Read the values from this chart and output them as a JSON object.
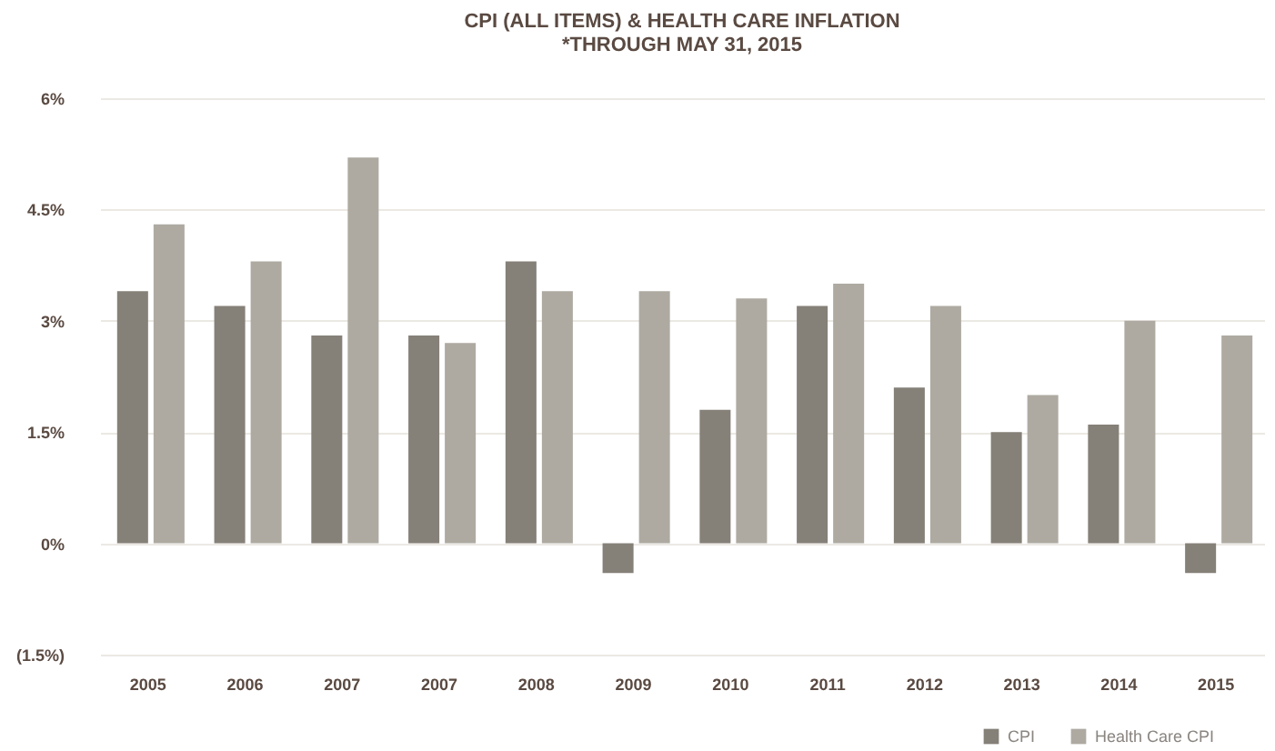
{
  "chart_data": {
    "type": "bar",
    "title": "CPI (ALL ITEMS) & HEALTH CARE INFLATION",
    "subtitle": "*THROUGH MAY 31, 2015",
    "categories": [
      "2005",
      "2006",
      "2007",
      "2007",
      "2008",
      "2009",
      "2010",
      "2011",
      "2012",
      "2013",
      "2014",
      "2015"
    ],
    "series": [
      {
        "name": "CPI",
        "color": "#858078",
        "values": [
          3.4,
          3.2,
          2.8,
          2.8,
          3.8,
          -0.4,
          1.8,
          3.2,
          2.1,
          1.5,
          1.6,
          -0.4
        ]
      },
      {
        "name": "Health Care CPI",
        "color": "#aeaaa2",
        "values": [
          4.3,
          3.8,
          5.2,
          2.7,
          3.4,
          3.4,
          3.3,
          3.5,
          3.2,
          2.0,
          3.0,
          2.8
        ]
      }
    ],
    "ylim": [
      -1.5,
      6
    ],
    "yticks": [
      {
        "value": -1.5,
        "label": "(1.5%)"
      },
      {
        "value": 0,
        "label": "0%"
      },
      {
        "value": 1.5,
        "label": "1.5%"
      },
      {
        "value": 3,
        "label": "3%"
      },
      {
        "value": 4.5,
        "label": "4.5%"
      },
      {
        "value": 6,
        "label": "6%"
      }
    ],
    "grid": "y",
    "legend": "bottom right"
  }
}
